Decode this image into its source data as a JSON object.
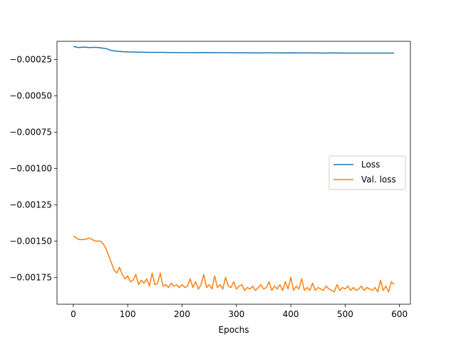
{
  "chart_data": {
    "type": "line",
    "title": "",
    "xlabel": "Epochs",
    "ylabel": "",
    "xlim": [
      -30,
      620
    ],
    "ylim": [
      -0.001935,
      -0.000125
    ],
    "xticks": [
      0,
      100,
      200,
      300,
      400,
      500,
      600
    ],
    "xtick_labels": [
      "0",
      "100",
      "200",
      "300",
      "400",
      "500",
      "600"
    ],
    "yticks": [
      -0.00025,
      -0.0005,
      -0.00075,
      -0.001,
      -0.00125,
      -0.0015,
      -0.00175
    ],
    "ytick_labels": [
      "−0.00025",
      "−0.00050",
      "−0.00075",
      "−0.00100",
      "−0.00125",
      "−0.00150",
      "−0.00175"
    ],
    "grid": false,
    "legend_position": "center-right",
    "series": [
      {
        "name": "Loss",
        "color": "#1f77b4",
        "x": [
          0,
          10,
          20,
          30,
          40,
          50,
          60,
          70,
          80,
          90,
          100,
          120,
          140,
          160,
          180,
          200,
          220,
          240,
          260,
          280,
          300,
          320,
          340,
          360,
          380,
          400,
          420,
          440,
          460,
          480,
          500,
          520,
          540,
          560,
          580,
          590
        ],
        "values": [
          -0.00016,
          -0.000168,
          -0.000165,
          -0.000168,
          -0.000166,
          -0.00017,
          -0.000175,
          -0.000188,
          -0.000193,
          -0.000196,
          -0.000198,
          -0.0002,
          -0.000201,
          -0.000201,
          -0.000202,
          -0.000203,
          -0.000203,
          -0.000202,
          -0.000203,
          -0.000203,
          -0.000204,
          -0.000204,
          -0.000205,
          -0.000204,
          -0.000205,
          -0.000204,
          -0.000205,
          -0.000205,
          -0.000206,
          -0.000205,
          -0.000206,
          -0.000206,
          -0.000206,
          -0.000206,
          -0.000206,
          -0.000206
        ]
      },
      {
        "name": "Val. loss",
        "color": "#ff7f0e",
        "x": [
          0,
          10,
          20,
          30,
          40,
          50,
          55,
          60,
          65,
          70,
          75,
          80,
          85,
          90,
          95,
          100,
          105,
          110,
          115,
          120,
          125,
          130,
          135,
          140,
          145,
          150,
          155,
          160,
          165,
          170,
          175,
          180,
          185,
          190,
          195,
          200,
          205,
          210,
          215,
          220,
          225,
          230,
          235,
          240,
          245,
          250,
          255,
          260,
          265,
          270,
          275,
          280,
          285,
          290,
          295,
          300,
          305,
          310,
          315,
          320,
          325,
          330,
          335,
          340,
          345,
          350,
          355,
          360,
          365,
          370,
          375,
          380,
          385,
          390,
          395,
          400,
          405,
          410,
          415,
          420,
          425,
          430,
          435,
          440,
          445,
          450,
          455,
          460,
          465,
          470,
          475,
          480,
          485,
          490,
          495,
          500,
          505,
          510,
          515,
          520,
          525,
          530,
          535,
          540,
          545,
          550,
          555,
          560,
          565,
          570,
          575,
          580,
          585,
          590
        ],
        "values": [
          -0.001465,
          -0.00149,
          -0.00149,
          -0.00148,
          -0.0015,
          -0.0015,
          -0.00152,
          -0.00155,
          -0.0016,
          -0.00165,
          -0.0017,
          -0.00172,
          -0.00168,
          -0.00173,
          -0.00176,
          -0.00174,
          -0.00178,
          -0.00177,
          -0.00173,
          -0.0018,
          -0.00177,
          -0.00179,
          -0.00176,
          -0.00181,
          -0.00172,
          -0.0018,
          -0.00179,
          -0.00172,
          -0.00181,
          -0.0018,
          -0.00182,
          -0.00179,
          -0.00181,
          -0.0018,
          -0.00182,
          -0.0018,
          -0.00182,
          -0.00181,
          -0.00176,
          -0.00182,
          -0.00178,
          -0.00183,
          -0.0018,
          -0.00173,
          -0.00182,
          -0.0018,
          -0.00183,
          -0.00174,
          -0.00182,
          -0.0018,
          -0.00183,
          -0.00175,
          -0.00181,
          -0.00182,
          -0.00178,
          -0.00183,
          -0.00181,
          -0.0018,
          -0.00184,
          -0.00182,
          -0.00183,
          -0.00181,
          -0.00184,
          -0.00182,
          -0.0018,
          -0.00183,
          -0.00182,
          -0.00178,
          -0.00184,
          -0.00181,
          -0.00183,
          -0.0018,
          -0.00184,
          -0.00178,
          -0.00183,
          -0.00175,
          -0.00184,
          -0.00181,
          -0.00183,
          -0.00176,
          -0.00184,
          -0.00182,
          -0.00184,
          -0.00179,
          -0.00184,
          -0.00182,
          -0.00183,
          -0.00184,
          -0.00181,
          -0.00183,
          -0.00184,
          -0.00185,
          -0.0018,
          -0.00184,
          -0.00182,
          -0.00183,
          -0.00181,
          -0.00184,
          -0.00182,
          -0.00184,
          -0.00183,
          -0.00181,
          -0.00184,
          -0.00182,
          -0.00183,
          -0.00184,
          -0.00182,
          -0.00185,
          -0.00177,
          -0.00184,
          -0.00181,
          -0.00185,
          -0.00178,
          -0.0018
        ]
      }
    ]
  }
}
